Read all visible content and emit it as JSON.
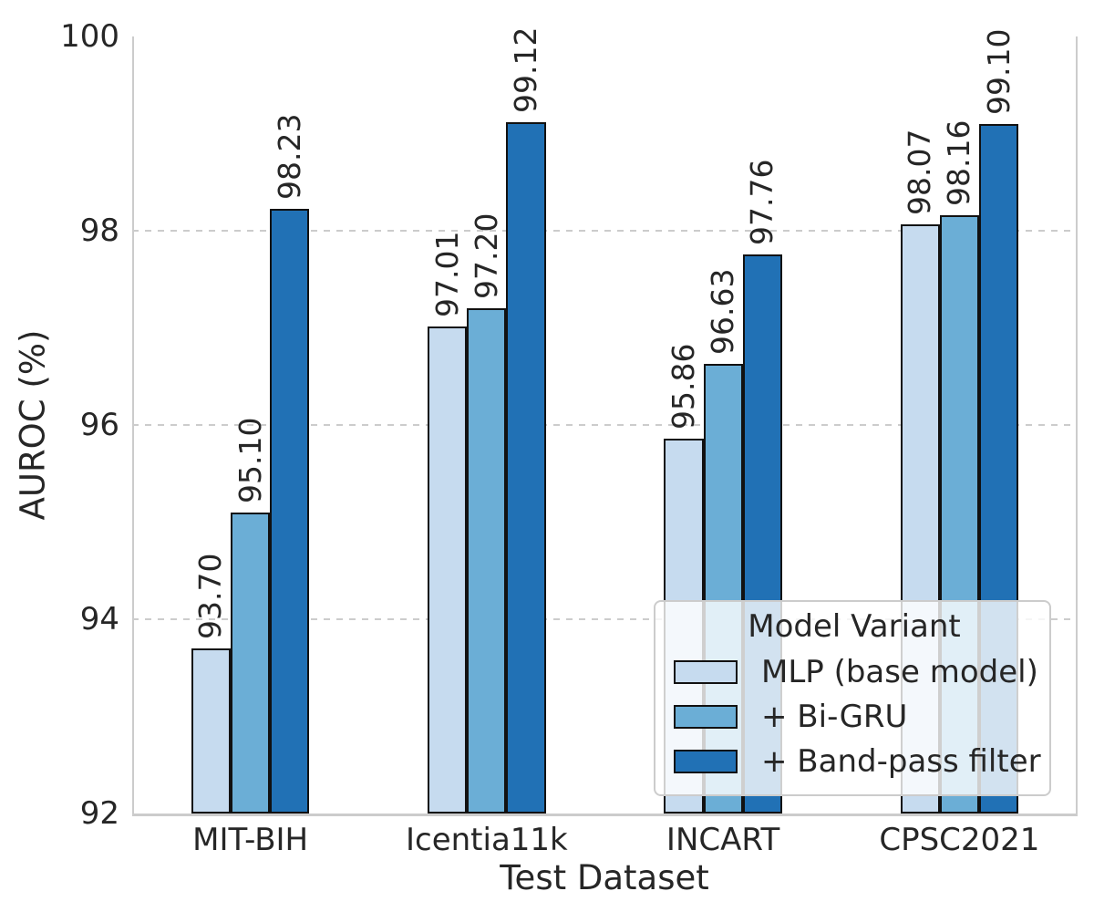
{
  "chart_data": {
    "type": "bar",
    "title": "",
    "xlabel": "Test Dataset",
    "ylabel": "AUROC (%)",
    "categories": [
      "MIT-BIH",
      "Icentia11k",
      "INCART",
      "CPSC2021"
    ],
    "series": [
      {
        "name": "MLP (base model)",
        "color": "#c6dbef",
        "values": [
          93.7,
          97.01,
          95.86,
          98.07
        ],
        "labels": [
          "93.70",
          "97.01",
          "95.86",
          "98.07"
        ]
      },
      {
        "name": "+ Bi-GRU",
        "color": "#6baed6",
        "values": [
          95.1,
          97.2,
          96.63,
          98.16
        ],
        "labels": [
          "95.10",
          "97.20",
          "96.63",
          "98.16"
        ]
      },
      {
        "name": "+ Band-pass filter",
        "color": "#2171b5",
        "values": [
          98.23,
          99.12,
          97.76,
          99.1
        ],
        "labels": [
          "98.23",
          "99.12",
          "97.76",
          "99.10"
        ]
      }
    ],
    "ylim": [
      92,
      100
    ],
    "yticks": [
      92,
      94,
      96,
      98,
      100
    ],
    "ytick_labels": [
      "92",
      "94",
      "96",
      "98",
      "100"
    ],
    "grid": {
      "axis": "y",
      "style": "dashed",
      "color": "#cccccc",
      "gridlines_at": [
        94,
        96,
        98
      ]
    },
    "legend": {
      "title": "Model Variant",
      "position": "lower right"
    },
    "bar_label_rotation": 90,
    "colors": {
      "text": "#262626",
      "spine": "#cccccc",
      "bar_edge": "#111111",
      "background": "#ffffff"
    }
  }
}
